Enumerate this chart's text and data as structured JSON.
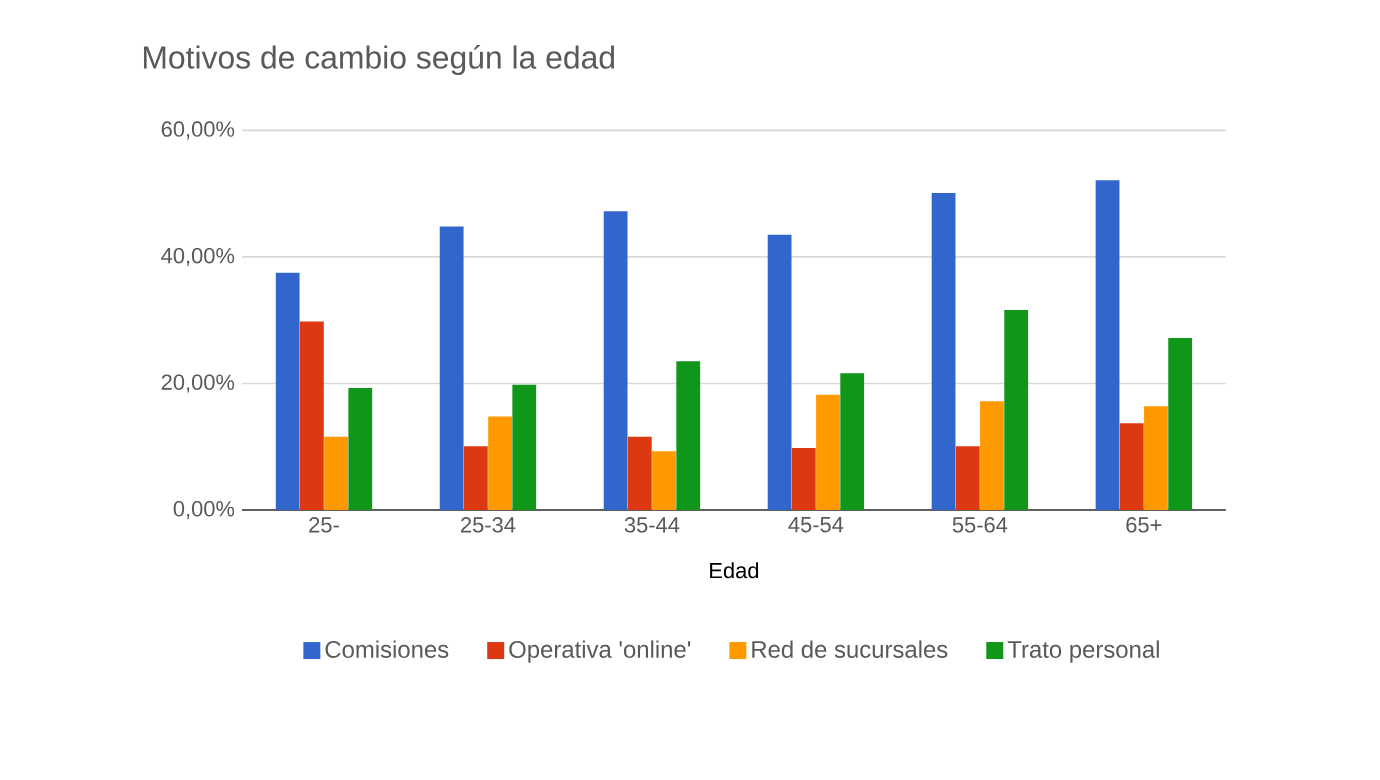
{
  "chart_data": {
    "type": "bar",
    "title": "Motivos de cambio según la edad",
    "xlabel": "Edad",
    "categories": [
      "25-",
      "25-34",
      "35-44",
      "45-54",
      "55-64",
      "65+"
    ],
    "series": [
      {
        "name": "Comisiones",
        "color": "#3366cc",
        "values": [
          37.5,
          44.8,
          47.2,
          43.5,
          50.1,
          52.1
        ]
      },
      {
        "name": "Operativa 'online'",
        "color": "#dc3912",
        "values": [
          29.8,
          10.1,
          11.6,
          9.8,
          10.1,
          13.7
        ]
      },
      {
        "name": "Red de sucursales",
        "color": "#ff9900",
        "values": [
          11.6,
          14.8,
          9.3,
          18.2,
          17.2,
          16.4
        ]
      },
      {
        "name": "Trato personal",
        "color": "#109618",
        "values": [
          19.3,
          19.8,
          23.5,
          21.6,
          31.6,
          27.2
        ]
      }
    ],
    "ylim": [
      0,
      60
    ],
    "yticks": [
      {
        "value": 0,
        "label": "0,00%"
      },
      {
        "value": 20,
        "label": "20,00%"
      },
      {
        "value": 40,
        "label": "40,00%"
      },
      {
        "value": 60,
        "label": "60,00%"
      }
    ],
    "grid": "y",
    "legend": "bottom"
  }
}
